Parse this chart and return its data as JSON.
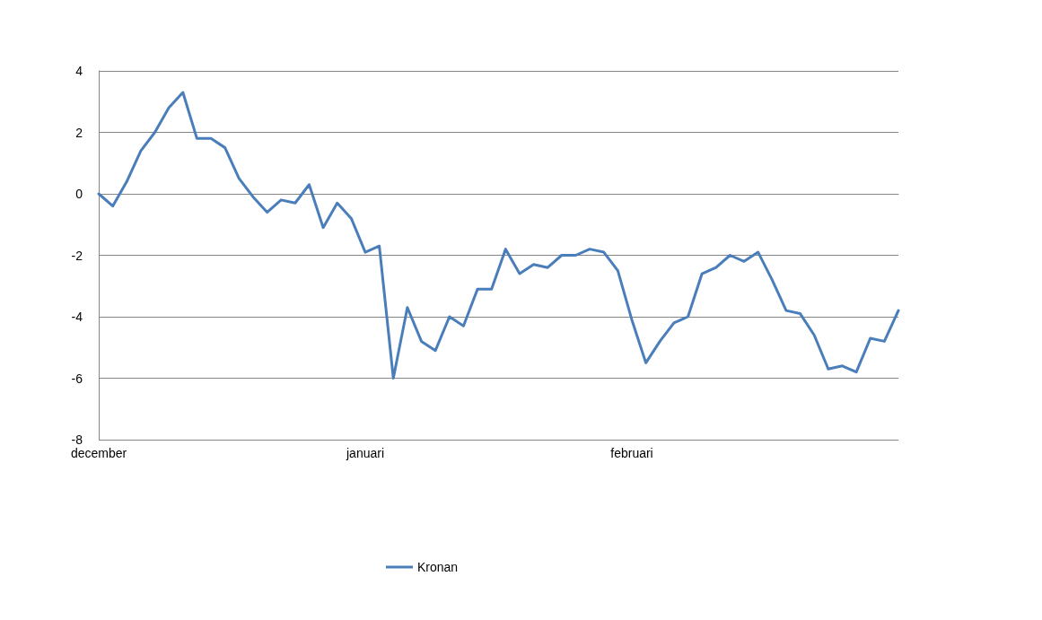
{
  "chart_data": {
    "type": "line",
    "categories": [
      "december",
      null,
      null,
      null,
      null,
      null,
      null,
      null,
      null,
      null,
      null,
      null,
      null,
      null,
      null,
      null,
      null,
      null,
      null,
      "januari",
      null,
      null,
      null,
      null,
      null,
      null,
      null,
      null,
      null,
      null,
      null,
      null,
      null,
      null,
      null,
      null,
      null,
      null,
      "februari",
      null,
      null,
      null,
      null,
      null,
      null,
      null,
      null,
      null,
      null,
      null,
      null,
      null,
      null,
      null,
      null,
      null,
      null,
      null
    ],
    "series": [
      {
        "name": "Kronan",
        "color": "#4a7ebb",
        "values": [
          0.0,
          -0.4,
          0.4,
          1.4,
          2.0,
          2.8,
          3.3,
          1.8,
          1.8,
          1.5,
          0.5,
          -0.1,
          -0.6,
          -0.2,
          -0.3,
          0.3,
          -1.1,
          -0.3,
          -0.8,
          -1.9,
          -1.7,
          -6.0,
          -3.7,
          -4.8,
          -5.1,
          -4.0,
          -4.3,
          -3.1,
          -3.1,
          -1.8,
          -2.6,
          -2.3,
          -2.4,
          -2.0,
          -2.0,
          -1.8,
          -1.9,
          -2.5,
          -4.1,
          -5.5,
          -4.8,
          -4.2,
          -4.0,
          -2.6,
          -2.4,
          -2.0,
          -2.2,
          -1.9,
          -2.8,
          -3.8,
          -3.9,
          -4.6,
          -5.7,
          -5.6,
          -5.8,
          -4.7,
          -4.8,
          -3.8
        ]
      }
    ],
    "ylim": [
      -8,
      4
    ],
    "yticks": [
      -8,
      -6,
      -4,
      -2,
      0,
      2,
      4
    ],
    "grid": "y",
    "legend": "bottom",
    "marker": "none",
    "line_style": "solid"
  }
}
